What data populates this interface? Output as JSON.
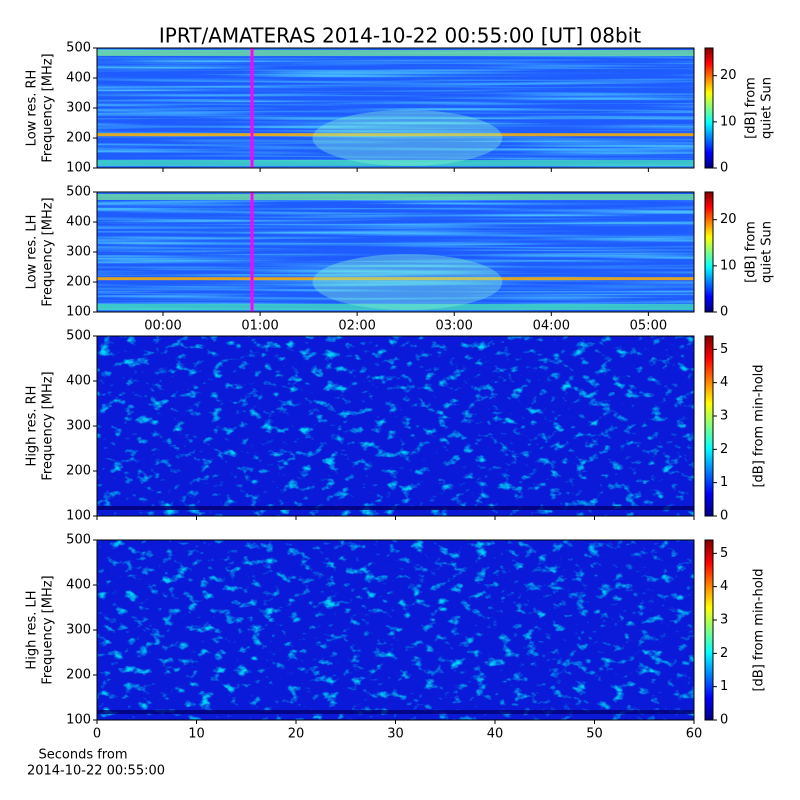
{
  "title": "IPRT/AMATERAS 2014-10-22 00:55:00 [UT]   08bit",
  "chart_data": [
    {
      "type": "heatmap",
      "colormap": "jet",
      "ylabel": [
        "Low res. RH",
        "Frequency [MHz]"
      ],
      "ylim": [
        100,
        500
      ],
      "yticks": [
        100,
        200,
        300,
        400,
        500
      ],
      "xlim": [
        -0.68,
        5.47
      ],
      "colorbar_label": [
        "[dB] from",
        "quiet Sun"
      ],
      "clim": [
        0,
        26
      ],
      "cticks": [
        0,
        10,
        20
      ],
      "marker_x": 0.917,
      "marker_color": "#ff00ff"
    },
    {
      "type": "heatmap",
      "colormap": "jet",
      "ylabel": [
        "Low res. LH",
        "Frequency [MHz]"
      ],
      "ylim": [
        100,
        500
      ],
      "yticks": [
        100,
        200,
        300,
        400,
        500
      ],
      "xlim": [
        -0.68,
        5.47
      ],
      "xticks": [
        {
          "value": 0,
          "label": "00:00"
        },
        {
          "value": 1,
          "label": "01:00"
        },
        {
          "value": 2,
          "label": "02:00"
        },
        {
          "value": 3,
          "label": "03:00"
        },
        {
          "value": 4,
          "label": "04:00"
        },
        {
          "value": 5,
          "label": "05:00"
        }
      ],
      "colorbar_label": [
        "[dB] from",
        "quiet Sun"
      ],
      "clim": [
        0,
        26
      ],
      "cticks": [
        0,
        10,
        20
      ],
      "marker_x": 0.917,
      "marker_color": "#ff00ff"
    },
    {
      "type": "heatmap",
      "colormap": "jet",
      "ylabel": [
        "High res. RH",
        "Frequency [MHz]"
      ],
      "ylim": [
        100,
        500
      ],
      "yticks": [
        100,
        200,
        300,
        400,
        500
      ],
      "xlim": [
        0,
        60
      ],
      "colorbar_label": [
        "[dB] from min-hold"
      ],
      "clim": [
        0,
        5.4
      ],
      "cticks": [
        0,
        1,
        2,
        3,
        4,
        5
      ]
    },
    {
      "type": "heatmap",
      "colormap": "jet",
      "ylabel": [
        "High res. LH",
        "Frequency [MHz]"
      ],
      "ylim": [
        100,
        500
      ],
      "yticks": [
        100,
        200,
        300,
        400,
        500
      ],
      "xlim": [
        0,
        60
      ],
      "xticks": [
        0,
        10,
        20,
        30,
        40,
        50,
        60
      ],
      "xlabel": [
        "Seconds from",
        "2014-10-22 00:55:00"
      ],
      "colorbar_label": [
        "[dB] from min-hold"
      ],
      "clim": [
        0,
        5.4
      ],
      "cticks": [
        0,
        1,
        2,
        3,
        4,
        5
      ]
    }
  ]
}
